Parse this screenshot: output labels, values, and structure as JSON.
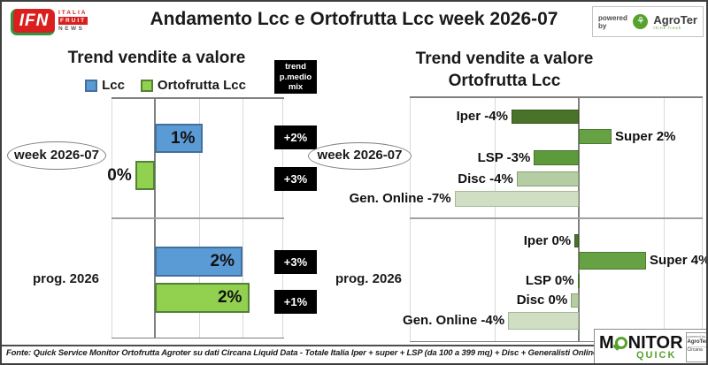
{
  "header": {
    "title": "Andamento Lcc e Ortofrutta Lcc week 2026-07",
    "ifn_logo": {
      "abbr": "IFN",
      "line1": "ITALIA",
      "line2": "FRUIT",
      "line3": "NEWS"
    },
    "powered_by_label": "powered by",
    "agroter_name": "AgroTer",
    "agroter_icon": "tree-icon",
    "agroter_tagline": "think fresh"
  },
  "left_chart": {
    "title": "Trend vendite a valore",
    "legend": [
      {
        "label": "Lcc",
        "color": "#5b9bd5",
        "border": "#41719c"
      },
      {
        "label": "Ortofrutta Lcc",
        "color": "#92d050",
        "border": "#538135"
      }
    ],
    "week_label": "week 2026-07",
    "prog_label": "prog. 2026",
    "pmedio_box": {
      "line1": "trend",
      "line2": "p.medio",
      "line3": "mix"
    },
    "pmedio_values": [
      "+2%",
      "+3%",
      "+3%",
      "+1%"
    ],
    "bars": [
      {
        "series": 0,
        "label": "1%",
        "value": 1.1,
        "inside": true
      },
      {
        "series": 1,
        "label": "0%",
        "value": -0.45,
        "inside": false
      },
      {
        "series": 0,
        "label": "2%",
        "value": 2.0,
        "inside": true
      },
      {
        "series": 1,
        "label": "2%",
        "value": 2.17,
        "inside": true
      }
    ]
  },
  "right_chart": {
    "title_line1": "Trend vendite a valore",
    "title_line2": "Ortofrutta Lcc",
    "week_label": "week 2026-07",
    "prog_label": "prog. 2026",
    "palette": [
      {
        "fill": "#4a7329",
        "border": "#365420"
      },
      {
        "fill": "#66a143",
        "border": "#4c7a2f"
      },
      {
        "fill": "#5d9a3c",
        "border": "#44722a"
      },
      {
        "fill": "#b5cda3",
        "border": "#87a371"
      },
      {
        "fill": "#d0dfc4",
        "border": "#a3b992"
      }
    ],
    "bars": [
      {
        "label": "Iper -4%",
        "value": -3.9,
        "shade": 0
      },
      {
        "label": "Super 2%",
        "value": 1.9,
        "shade": 1
      },
      {
        "label": "LSP -3%",
        "value": -2.6,
        "shade": 2
      },
      {
        "label": "Disc -4%",
        "value": -3.6,
        "shade": 3
      },
      {
        "label": "Gen. Online -7%",
        "value": -7.2,
        "shade": 4
      },
      {
        "label": "Iper 0%",
        "value": -0.25,
        "shade": 0
      },
      {
        "label": "Super 4%",
        "value": 3.9,
        "shade": 1
      },
      {
        "label": "LSP 0%",
        "value": -0.05,
        "shade": 2
      },
      {
        "label": "Disc 0%",
        "value": -0.45,
        "shade": 3
      },
      {
        "label": "Gen. Online -4%",
        "value": -4.1,
        "shade": 4
      }
    ]
  },
  "footer": {
    "fonte": "Fonte: Quick Service Monitor Ortofrutta Agroter su dati Circana Liquid Data - Totale Italia Iper + super + LSP (da 100 a 399 mq) + Disc + Generalisti Online - Lcc",
    "monitor_logo": {
      "m": "M",
      "rest": "NITOR",
      "quick": "QUICK"
    },
    "side_box": {
      "powered": "powered by",
      "agroter": "AgroTer",
      "circana": "Circana"
    }
  },
  "chart_data": [
    {
      "type": "bar",
      "orientation": "horizontal",
      "title": "Trend vendite a valore",
      "groups": [
        "week 2026-07",
        "prog. 2026"
      ],
      "series": [
        {
          "name": "Lcc",
          "color": "#5b9bd5",
          "values": [
            1,
            2
          ]
        },
        {
          "name": "Ortofrutta Lcc",
          "color": "#92d050",
          "values": [
            0,
            2
          ]
        }
      ],
      "annotations": {
        "label": "trend p.medio mix",
        "values": {
          "week 2026-07": {
            "Lcc": "+2%",
            "Ortofrutta Lcc": "+3%"
          },
          "prog. 2026": {
            "Lcc": "+3%",
            "Ortofrutta Lcc": "+1%"
          }
        }
      },
      "xlim": [
        -1,
        3
      ],
      "grid": true,
      "legend_position": "top"
    },
    {
      "type": "bar",
      "orientation": "horizontal",
      "title": "Trend vendite a valore Ortofrutta Lcc",
      "categories": [
        "Iper",
        "Super",
        "LSP",
        "Disc",
        "Gen. Online"
      ],
      "series": [
        {
          "name": "week 2026-07",
          "values": [
            -4,
            2,
            -3,
            -4,
            -7
          ]
        },
        {
          "name": "prog. 2026",
          "values": [
            0,
            4,
            0,
            0,
            -4
          ]
        }
      ],
      "xlim": [
        -10,
        7
      ],
      "grid": true,
      "value_labels": true
    }
  ]
}
